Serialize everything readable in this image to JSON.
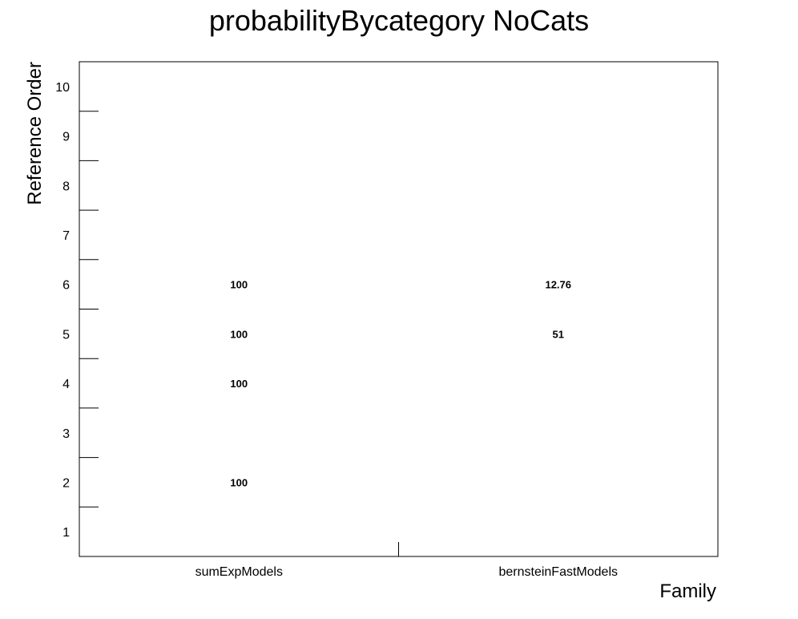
{
  "chart_data": {
    "type": "table",
    "title": "probabilityBycategory NoCats",
    "xlabel": "Family",
    "ylabel": "Reference Order",
    "x_categories": [
      "sumExpModels",
      "bernsteinFastModels"
    ],
    "y_categories": [
      "1",
      "2",
      "3",
      "4",
      "5",
      "6",
      "7",
      "8",
      "9",
      "10"
    ],
    "cells": [
      {
        "x": "sumExpModels",
        "y": "2",
        "text": "100"
      },
      {
        "x": "sumExpModels",
        "y": "4",
        "text": "100"
      },
      {
        "x": "sumExpModels",
        "y": "5",
        "text": "100"
      },
      {
        "x": "sumExpModels",
        "y": "6",
        "text": "100"
      },
      {
        "x": "bernsteinFastModels",
        "y": "5",
        "text": "51"
      },
      {
        "x": "bernsteinFastModels",
        "y": "6",
        "text": "12.76"
      }
    ],
    "grid": false,
    "frame_color": "#000000"
  }
}
